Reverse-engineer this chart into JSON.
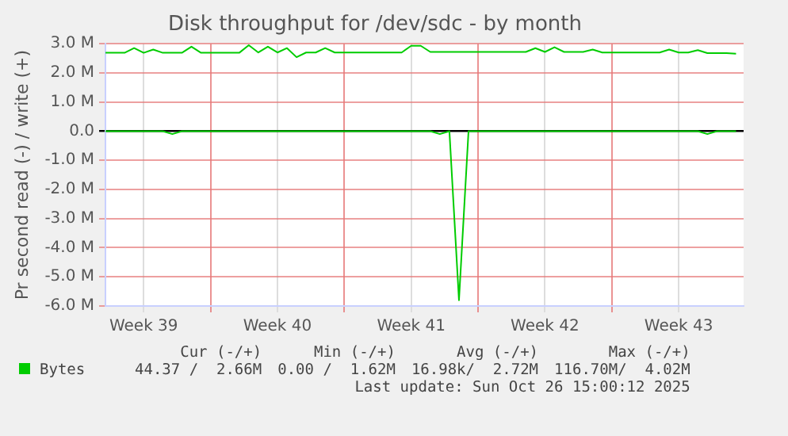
{
  "chart_data": {
    "type": "line",
    "title": "Disk throughput for /dev/sdc - by month",
    "ylabel": "Pr second read (-) / write (+)",
    "x": [
      "2025-09-23T12:00",
      "2025-09-24T00:00",
      "2025-09-24T12:00",
      "2025-09-25T00:00",
      "2025-09-25T12:00",
      "2025-09-26T00:00",
      "2025-09-26T12:00",
      "2025-09-27T00:00",
      "2025-09-27T12:00",
      "2025-09-28T00:00",
      "2025-09-28T12:00",
      "2025-09-29T00:00",
      "2025-09-29T12:00",
      "2025-09-30T00:00",
      "2025-09-30T12:00",
      "2025-10-01T00:00",
      "2025-10-01T12:00",
      "2025-10-02T00:00",
      "2025-10-02T12:00",
      "2025-10-03T00:00",
      "2025-10-03T12:00",
      "2025-10-04T00:00",
      "2025-10-04T12:00",
      "2025-10-05T00:00",
      "2025-10-05T12:00",
      "2025-10-06T00:00",
      "2025-10-06T12:00",
      "2025-10-07T00:00",
      "2025-10-07T12:00",
      "2025-10-08T00:00",
      "2025-10-08T12:00",
      "2025-10-09T00:00",
      "2025-10-09T12:00",
      "2025-10-10T00:00",
      "2025-10-10T12:00",
      "2025-10-11T00:00",
      "2025-10-11T12:00",
      "2025-10-12T00:00",
      "2025-10-12T12:00",
      "2025-10-13T00:00",
      "2025-10-13T12:00",
      "2025-10-14T00:00",
      "2025-10-14T12:00",
      "2025-10-15T00:00",
      "2025-10-15T12:00",
      "2025-10-16T00:00",
      "2025-10-16T12:00",
      "2025-10-17T00:00",
      "2025-10-17T12:00",
      "2025-10-18T00:00",
      "2025-10-18T12:00",
      "2025-10-19T00:00",
      "2025-10-19T12:00",
      "2025-10-20T00:00",
      "2025-10-20T12:00",
      "2025-10-21T00:00",
      "2025-10-21T12:00",
      "2025-10-22T00:00",
      "2025-10-22T12:00",
      "2025-10-23T00:00",
      "2025-10-23T12:00",
      "2025-10-24T00:00",
      "2025-10-24T12:00",
      "2025-10-25T00:00",
      "2025-10-25T12:00",
      "2025-10-26T00:00",
      "2025-10-26T12:00"
    ],
    "series": [
      {
        "name": "Bytes",
        "color": "#00cc00",
        "values": [
          2690000,
          2690000,
          2690000,
          2850000,
          2690000,
          2800000,
          2690000,
          2690000,
          2690000,
          2900000,
          2690000,
          2690000,
          2690000,
          2690000,
          2690000,
          2950000,
          2700000,
          2900000,
          2700000,
          2850000,
          2540000,
          2700000,
          2700000,
          2850000,
          2700000,
          2700000,
          2700000,
          2700000,
          2700000,
          2700000,
          2700000,
          2700000,
          2930000,
          2930000,
          2720000,
          2720000,
          2720000,
          2720000,
          2720000,
          2720000,
          2720000,
          2720000,
          2720000,
          2720000,
          2720000,
          2850000,
          2720000,
          2880000,
          2720000,
          2720000,
          2720000,
          2800000,
          2700000,
          2700000,
          2700000,
          2700000,
          2700000,
          2700000,
          2700000,
          2800000,
          2700000,
          2700000,
          2780000,
          2680000,
          2680000,
          2680000,
          2660000
        ]
      },
      {
        "color": "#00cc00",
        "values": [
          0,
          0,
          0,
          0,
          0,
          0,
          0,
          -100000,
          0,
          0,
          0,
          0,
          0,
          0,
          0,
          0,
          0,
          0,
          0,
          0,
          0,
          0,
          0,
          0,
          0,
          0,
          0,
          0,
          0,
          0,
          0,
          0,
          0,
          0,
          0,
          -100000,
          0,
          -5800000,
          0,
          0,
          0,
          0,
          0,
          0,
          0,
          0,
          0,
          0,
          0,
          0,
          0,
          0,
          0,
          0,
          0,
          0,
          0,
          0,
          0,
          0,
          0,
          0,
          0,
          -100000,
          0,
          0,
          0
        ]
      }
    ],
    "xlim": [
      "2025-09-23T12:00",
      "2025-10-26T21:30"
    ],
    "xticks": [
      {
        "value": "2025-09-25T12:00",
        "label": "Week 39"
      },
      {
        "value": "2025-09-29T00:00",
        "label": null
      },
      {
        "value": "2025-10-02T12:00",
        "label": "Week 40"
      },
      {
        "value": "2025-10-06T00:00",
        "label": null
      },
      {
        "value": "2025-10-09T12:00",
        "label": "Week 41"
      },
      {
        "value": "2025-10-13T00:00",
        "label": null
      },
      {
        "value": "2025-10-16T12:00",
        "label": "Week 42"
      },
      {
        "value": "2025-10-20T00:00",
        "label": null
      },
      {
        "value": "2025-10-23T12:00",
        "label": "Week 43"
      }
    ],
    "ylim": [
      -6000000,
      3000000
    ],
    "yticks": [
      {
        "value": 3000000,
        "label": "3.0 M"
      },
      {
        "value": 2000000,
        "label": "2.0 M"
      },
      {
        "value": 1000000,
        "label": "1.0 M"
      },
      {
        "value": 0,
        "label": "0.0"
      },
      {
        "value": -1000000,
        "label": "-1.0 M"
      },
      {
        "value": -2000000,
        "label": "-2.0 M"
      },
      {
        "value": -3000000,
        "label": "-3.0 M"
      },
      {
        "value": -4000000,
        "label": "-4.0 M"
      },
      {
        "value": -5000000,
        "label": "-5.0 M"
      },
      {
        "value": -6000000,
        "label": "-6.0 M"
      }
    ],
    "grid": true,
    "legend": "bottom",
    "marker": "none",
    "line_style": "solid",
    "annotations": [
      "Cur (-/+)",
      "Min (-/+)",
      "Avg (-/+)",
      "Max (-/+)",
      "44.37 /  2.66M",
      "0.00 /  1.62M",
      "16.98k/  2.72M",
      "116.70M/  4.02M",
      "Last update: Sun Oct 26 15:00:12 2025"
    ]
  }
}
